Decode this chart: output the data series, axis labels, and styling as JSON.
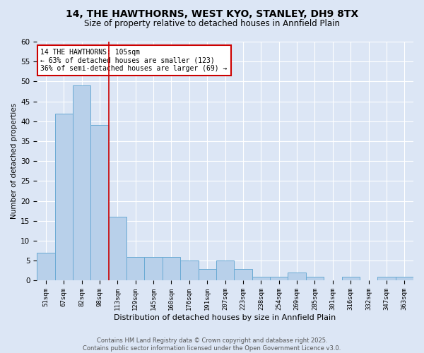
{
  "title_line1": "14, THE HAWTHORNS, WEST KYO, STANLEY, DH9 8TX",
  "title_line2": "Size of property relative to detached houses in Annfield Plain",
  "categories": [
    "51sqm",
    "67sqm",
    "82sqm",
    "98sqm",
    "113sqm",
    "129sqm",
    "145sqm",
    "160sqm",
    "176sqm",
    "191sqm",
    "207sqm",
    "223sqm",
    "238sqm",
    "254sqm",
    "269sqm",
    "285sqm",
    "301sqm",
    "316sqm",
    "332sqm",
    "347sqm",
    "363sqm"
  ],
  "values": [
    7,
    42,
    49,
    39,
    16,
    6,
    6,
    6,
    5,
    3,
    5,
    3,
    1,
    1,
    2,
    1,
    0,
    1,
    0,
    1,
    1
  ],
  "bar_color": "#b8d0ea",
  "bar_edge_color": "#6aaad4",
  "vline_x": 3.5,
  "vline_color": "#cc0000",
  "annotation_text": "14 THE HAWTHORNS: 105sqm\n← 63% of detached houses are smaller (123)\n36% of semi-detached houses are larger (69) →",
  "annotation_box_color": "#ffffff",
  "annotation_box_edge": "#cc0000",
  "xlabel": "Distribution of detached houses by size in Annfield Plain",
  "ylabel": "Number of detached properties",
  "ylim": [
    0,
    60
  ],
  "yticks": [
    0,
    5,
    10,
    15,
    20,
    25,
    30,
    35,
    40,
    45,
    50,
    55,
    60
  ],
  "footer_line1": "Contains HM Land Registry data © Crown copyright and database right 2025.",
  "footer_line2": "Contains public sector information licensed under the Open Government Licence v3.0.",
  "bg_color": "#dce6f5",
  "plot_bg_color": "#dce6f5"
}
